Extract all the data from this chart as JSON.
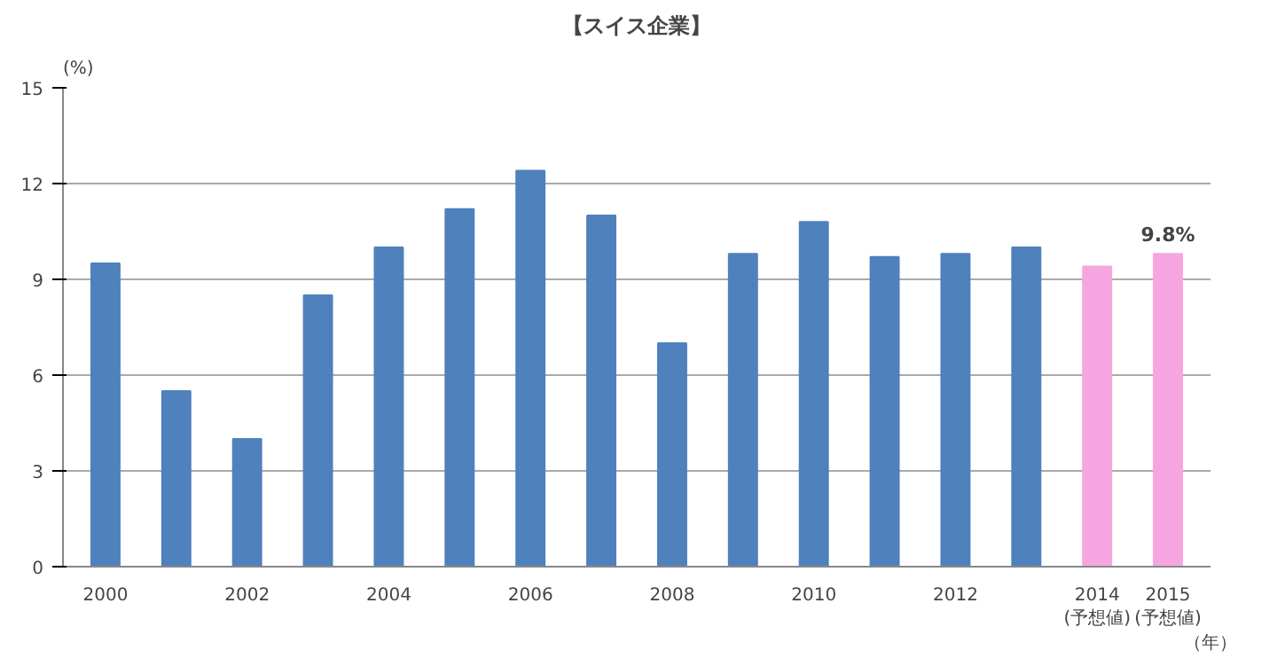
{
  "chart_data": {
    "type": "bar",
    "title": "【スイス企業】",
    "ylabel": "(%)",
    "xlabel": "（年）",
    "categories": [
      "2000",
      null,
      "2002",
      null,
      "2004",
      null,
      "2006",
      null,
      "2008",
      null,
      "2010",
      null,
      "2012",
      null,
      "2014\n(予想値)",
      "2015\n(予想値)"
    ],
    "values": [
      9.5,
      5.5,
      4.0,
      8.5,
      10.0,
      11.2,
      12.4,
      11.0,
      7.0,
      9.8,
      10.8,
      9.7,
      9.8,
      10.0,
      9.4,
      9.8
    ],
    "colors": [
      "#4f81bd",
      "#4f81bd",
      "#4f81bd",
      "#4f81bd",
      "#4f81bd",
      "#4f81bd",
      "#4f81bd",
      "#4f81bd",
      "#4f81bd",
      "#4f81bd",
      "#4f81bd",
      "#4f81bd",
      "#4f81bd",
      "#4f81bd",
      "#f5a6e0",
      "#f5a6e0"
    ],
    "value_labels": [
      null,
      null,
      null,
      null,
      null,
      null,
      null,
      null,
      null,
      null,
      null,
      null,
      null,
      null,
      null,
      "9.8%"
    ],
    "ylim": [
      0,
      15
    ],
    "yticks": [
      0,
      3,
      6,
      9,
      12,
      15
    ],
    "grid": "y"
  }
}
